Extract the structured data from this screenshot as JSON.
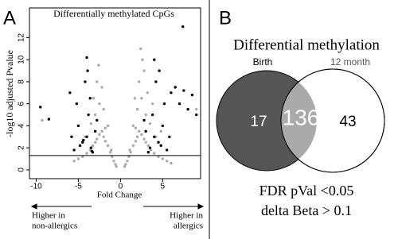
{
  "chart_data": [
    {
      "type": "scatter",
      "panel": "A",
      "title": "Differentially methylated CpGs",
      "x_label": "Fold Change",
      "y_label": "-log10 adjusted Pvalue",
      "xlim": [
        -10.8,
        9.5
      ],
      "ylim": [
        -0.8,
        14.7
      ],
      "xticks": [
        -10,
        -5,
        0,
        5
      ],
      "yticks": [
        0,
        2,
        4,
        6,
        8,
        10,
        12
      ],
      "hline": 1.3,
      "annotations": [
        "Higher in",
        "non-allergics",
        "Higher in",
        "allergics"
      ],
      "series": [
        {
          "color": "#aaaaaa",
          "x": [
            -0.5,
            -0.8,
            -1,
            -1.2,
            -1.5,
            -1.8,
            -2,
            -2.2,
            -2.5,
            -2.8,
            -3,
            -3.3,
            -3.6,
            -4,
            -4.5,
            -5,
            -5.5,
            -1.5,
            -2,
            -2.5,
            -3,
            -3.5,
            -2.2,
            -2.8,
            -1.8,
            -3.2,
            -4.2,
            -0.6,
            -1.1,
            -2.6,
            0.5,
            0.8,
            1,
            1.2,
            1.5,
            1.8,
            2,
            2.2,
            2.5,
            2.8,
            3,
            3.3,
            3.6,
            4,
            4.5,
            5,
            5.5,
            6,
            1.5,
            2,
            2.5,
            3,
            3.5,
            2.2,
            2.8,
            1.8,
            3.2,
            4.2,
            0.6,
            1.1,
            2.6,
            3.8,
            2.4,
            1.7,
            4.8,
            -9.3,
            9
          ],
          "values": [
            0.3,
            0.8,
            1.2,
            1.6,
            2.2,
            2.6,
            3,
            3.5,
            3.2,
            2.8,
            2.5,
            2.2,
            1.8,
            1.5,
            1.2,
            1,
            0.8,
            4,
            5.5,
            6,
            5,
            4.2,
            7.5,
            8,
            3.8,
            6.5,
            3,
            0.5,
            1.8,
            9.5,
            0.3,
            0.8,
            1.2,
            1.6,
            2.2,
            2.6,
            3,
            3.5,
            3.2,
            2.8,
            2.5,
            2.2,
            1.8,
            1.5,
            1.2,
            1,
            0.8,
            0.6,
            4,
            5.5,
            6.5,
            5,
            4.2,
            8,
            9,
            3.8,
            7,
            3,
            0.5,
            1.8,
            10,
            6,
            11,
            6.5,
            3.5,
            4.5,
            5.5
          ]
        },
        {
          "color": "#000000",
          "x": [
            -3.5,
            -4,
            -4.5,
            -5,
            -5.5,
            -6,
            -3,
            -3.8,
            -4.2,
            -5.2,
            -4.8,
            -3.3,
            -2.8,
            -5.8,
            -4,
            -3.6,
            -9.5,
            -8.5,
            -3.4,
            -4.4,
            -3.9,
            3.5,
            4,
            4.5,
            5,
            5.5,
            6,
            3,
            3.8,
            4.2,
            5.2,
            4.8,
            3.3,
            2.8,
            5.8,
            4,
            6.5,
            7,
            7.5,
            8,
            8.5,
            9,
            4.6,
            7.4
          ],
          "values": [
            2,
            3,
            2.5,
            4,
            1.8,
            7,
            3.5,
            5,
            8,
            6,
            2.2,
            1.6,
            4.5,
            3,
            10.2,
            6.5,
            5.7,
            4.6,
            1.7,
            2.7,
            9,
            2,
            3,
            2.5,
            4,
            1.8,
            7,
            3.5,
            5,
            8,
            6,
            2.2,
            1.6,
            4.5,
            3,
            10,
            7.5,
            6,
            7.2,
            5.5,
            6.8,
            5,
            9,
            13
          ]
        }
      ]
    },
    {
      "type": "venn",
      "panel": "B",
      "title": "Differential methylation",
      "sets": [
        "Birth",
        "12 month"
      ],
      "counts": [
        17,
        136,
        43
      ],
      "footnotes": [
        "FDR pVal <0.05",
        "delta Beta > 0.1"
      ]
    }
  ]
}
